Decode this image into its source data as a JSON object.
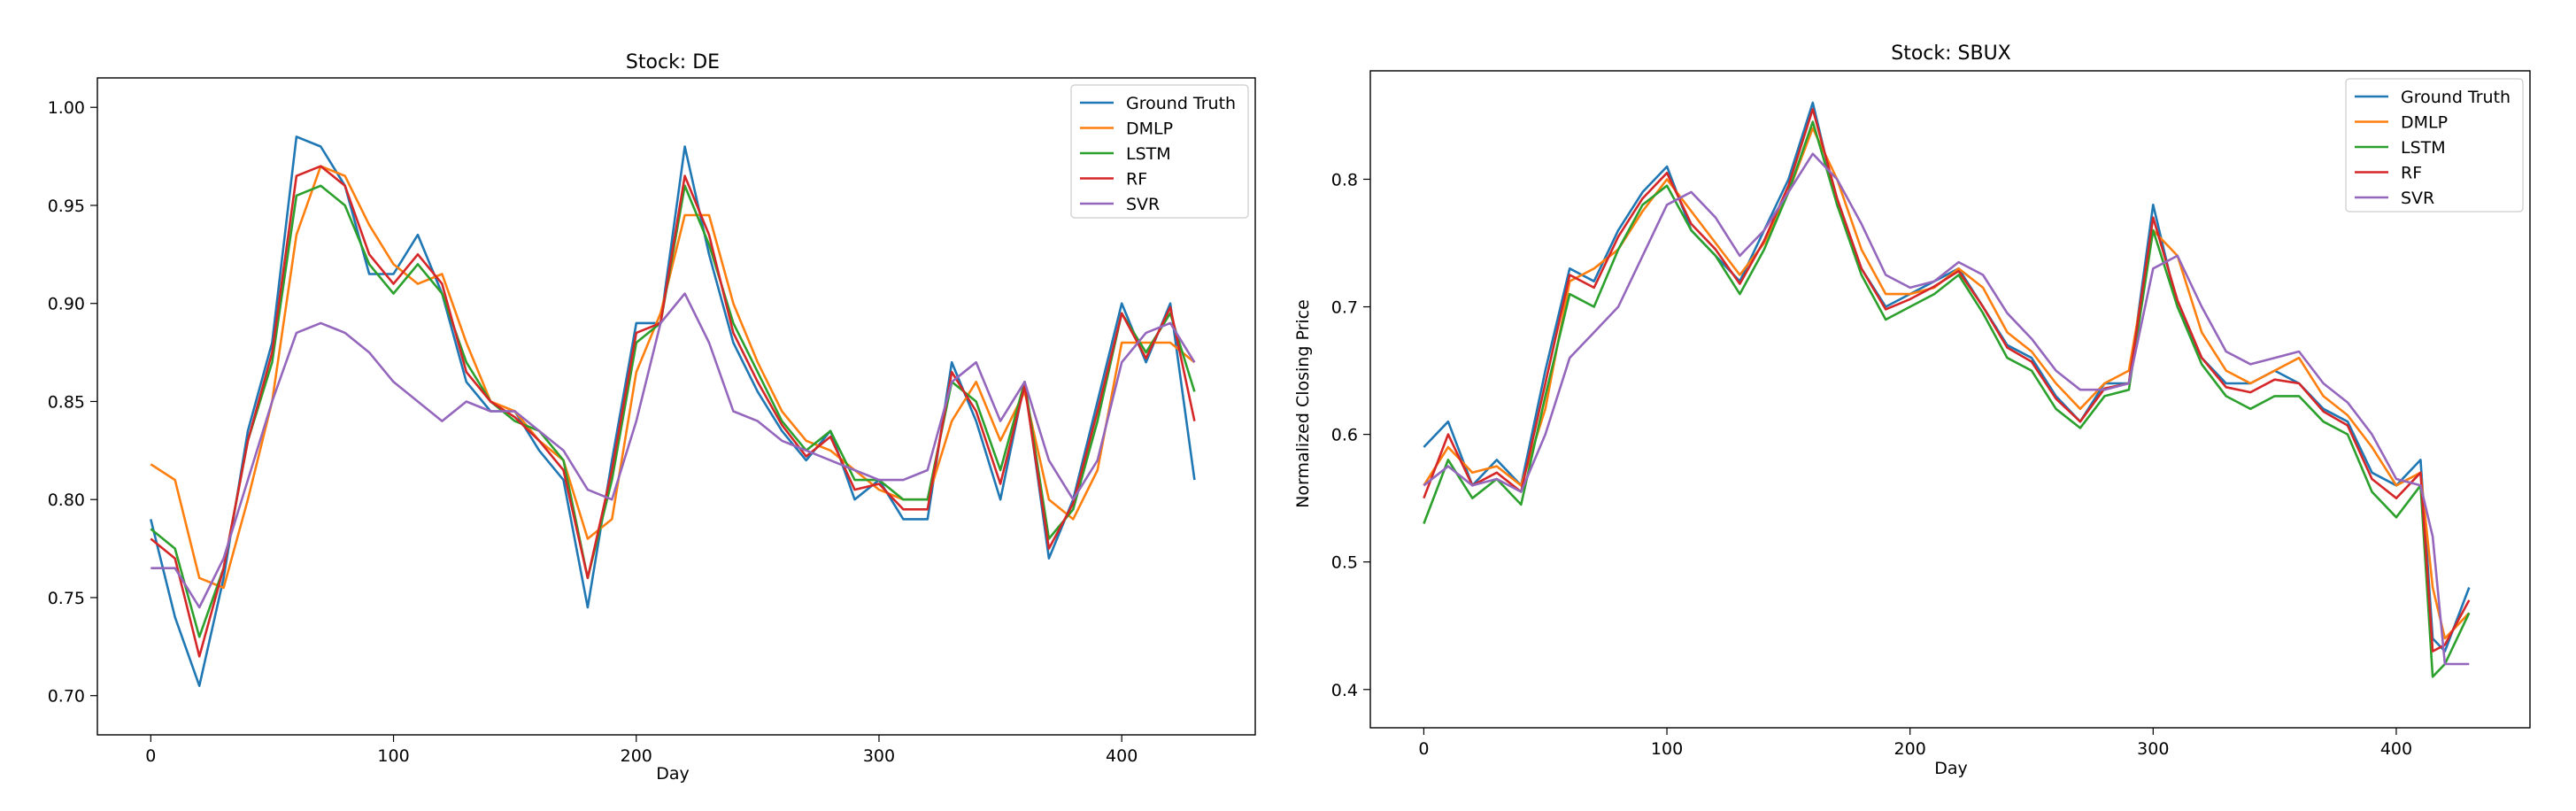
{
  "chart_data": [
    {
      "type": "line",
      "title": "Stock: DE",
      "xlabel": "Day",
      "ylabel": "",
      "xlim": [
        -22,
        455
      ],
      "ylim": [
        0.68,
        1.015
      ],
      "xticks": [
        0,
        100,
        200,
        300,
        400
      ],
      "yticks": [
        0.7,
        0.75,
        0.8,
        0.85,
        0.9,
        0.95,
        1.0
      ],
      "ytick_labels": [
        "0.70",
        "0.75",
        "0.80",
        "0.85",
        "0.90",
        "0.95",
        "1.00"
      ],
      "legend_position": "top-right",
      "x": [
        0,
        10,
        20,
        30,
        40,
        50,
        60,
        70,
        80,
        90,
        100,
        110,
        120,
        130,
        140,
        150,
        160,
        170,
        180,
        190,
        200,
        210,
        220,
        230,
        240,
        250,
        260,
        270,
        280,
        290,
        300,
        310,
        320,
        330,
        340,
        350,
        360,
        370,
        380,
        390,
        400,
        410,
        420,
        430
      ],
      "series": [
        {
          "name": "Ground Truth",
          "color": "#1f77b4",
          "values": [
            0.79,
            0.74,
            0.705,
            0.76,
            0.835,
            0.88,
            0.985,
            0.98,
            0.96,
            0.915,
            0.915,
            0.935,
            0.905,
            0.86,
            0.845,
            0.845,
            0.825,
            0.81,
            0.745,
            0.82,
            0.89,
            0.89,
            0.98,
            0.925,
            0.88,
            0.855,
            0.835,
            0.82,
            0.835,
            0.8,
            0.81,
            0.79,
            0.79,
            0.87,
            0.84,
            0.8,
            0.86,
            0.77,
            0.8,
            0.85,
            0.9,
            0.87,
            0.9,
            0.81
          ]
        },
        {
          "name": "DMLP",
          "color": "#ff7f0e",
          "values": [
            0.818,
            0.81,
            0.76,
            0.755,
            0.8,
            0.85,
            0.935,
            0.97,
            0.965,
            0.94,
            0.92,
            0.91,
            0.915,
            0.88,
            0.85,
            0.845,
            0.83,
            0.82,
            0.78,
            0.79,
            0.865,
            0.895,
            0.945,
            0.945,
            0.9,
            0.87,
            0.845,
            0.83,
            0.825,
            0.815,
            0.805,
            0.8,
            0.8,
            0.84,
            0.86,
            0.83,
            0.855,
            0.8,
            0.79,
            0.815,
            0.88,
            0.88,
            0.88,
            0.87
          ]
        },
        {
          "name": "LSTM",
          "color": "#2ca02c",
          "values": [
            0.785,
            0.775,
            0.73,
            0.765,
            0.83,
            0.87,
            0.955,
            0.96,
            0.95,
            0.92,
            0.905,
            0.92,
            0.905,
            0.87,
            0.85,
            0.84,
            0.835,
            0.82,
            0.76,
            0.81,
            0.88,
            0.89,
            0.96,
            0.93,
            0.89,
            0.865,
            0.84,
            0.825,
            0.835,
            0.81,
            0.81,
            0.8,
            0.8,
            0.86,
            0.85,
            0.815,
            0.86,
            0.78,
            0.795,
            0.84,
            0.895,
            0.875,
            0.895,
            0.855
          ]
        },
        {
          "name": "RF",
          "color": "#d62728",
          "values": [
            0.78,
            0.77,
            0.72,
            0.765,
            0.83,
            0.875,
            0.965,
            0.97,
            0.96,
            0.925,
            0.91,
            0.925,
            0.91,
            0.865,
            0.85,
            0.842,
            0.83,
            0.815,
            0.76,
            0.815,
            0.885,
            0.89,
            0.965,
            0.935,
            0.885,
            0.86,
            0.838,
            0.822,
            0.832,
            0.805,
            0.808,
            0.795,
            0.795,
            0.865,
            0.845,
            0.808,
            0.858,
            0.775,
            0.798,
            0.845,
            0.895,
            0.872,
            0.898,
            0.84
          ]
        },
        {
          "name": "SVR",
          "color": "#9467bd",
          "values": [
            0.765,
            0.765,
            0.745,
            0.77,
            0.81,
            0.85,
            0.885,
            0.89,
            0.885,
            0.875,
            0.86,
            0.85,
            0.84,
            0.85,
            0.845,
            0.845,
            0.835,
            0.825,
            0.805,
            0.8,
            0.84,
            0.89,
            0.905,
            0.88,
            0.845,
            0.84,
            0.83,
            0.825,
            0.82,
            0.815,
            0.81,
            0.81,
            0.815,
            0.86,
            0.87,
            0.84,
            0.86,
            0.82,
            0.8,
            0.82,
            0.87,
            0.885,
            0.89,
            0.87
          ]
        }
      ]
    },
    {
      "type": "line",
      "title": "Stock: SBUX",
      "xlabel": "Day",
      "ylabel": "Normalized Closing Price",
      "xlim": [
        -22,
        455
      ],
      "ylim": [
        0.37,
        0.885
      ],
      "xticks": [
        0,
        100,
        200,
        300,
        400
      ],
      "yticks": [
        0.4,
        0.5,
        0.6,
        0.7,
        0.8
      ],
      "ytick_labels": [
        "0.4",
        "0.5",
        "0.6",
        "0.7",
        "0.8"
      ],
      "legend_position": "top-right",
      "x": [
        0,
        10,
        20,
        30,
        40,
        50,
        60,
        70,
        80,
        90,
        100,
        110,
        120,
        130,
        140,
        150,
        160,
        170,
        180,
        190,
        200,
        210,
        220,
        230,
        240,
        250,
        260,
        270,
        280,
        290,
        300,
        310,
        320,
        330,
        340,
        350,
        360,
        370,
        380,
        390,
        400,
        410,
        415,
        420,
        430
      ],
      "series": [
        {
          "name": "Ground Truth",
          "color": "#1f77b4",
          "values": [
            0.59,
            0.61,
            0.56,
            0.58,
            0.56,
            0.65,
            0.73,
            0.72,
            0.76,
            0.79,
            0.81,
            0.76,
            0.74,
            0.72,
            0.76,
            0.8,
            0.86,
            0.78,
            0.73,
            0.7,
            0.71,
            0.72,
            0.73,
            0.7,
            0.67,
            0.66,
            0.63,
            0.61,
            0.64,
            0.64,
            0.78,
            0.7,
            0.66,
            0.64,
            0.64,
            0.65,
            0.64,
            0.62,
            0.61,
            0.57,
            0.56,
            0.58,
            0.44,
            0.43,
            0.48
          ]
        },
        {
          "name": "DMLP",
          "color": "#ff7f0e",
          "values": [
            0.56,
            0.59,
            0.57,
            0.575,
            0.56,
            0.62,
            0.72,
            0.73,
            0.745,
            0.775,
            0.8,
            0.775,
            0.75,
            0.725,
            0.75,
            0.79,
            0.84,
            0.8,
            0.745,
            0.71,
            0.71,
            0.715,
            0.73,
            0.715,
            0.68,
            0.665,
            0.64,
            0.62,
            0.64,
            0.65,
            0.76,
            0.74,
            0.68,
            0.65,
            0.64,
            0.65,
            0.66,
            0.63,
            0.615,
            0.59,
            0.56,
            0.57,
            0.48,
            0.44,
            0.46
          ]
        },
        {
          "name": "LSTM",
          "color": "#2ca02c",
          "values": [
            0.53,
            0.58,
            0.55,
            0.565,
            0.545,
            0.63,
            0.71,
            0.7,
            0.745,
            0.78,
            0.795,
            0.76,
            0.74,
            0.71,
            0.745,
            0.79,
            0.845,
            0.78,
            0.725,
            0.69,
            0.7,
            0.71,
            0.725,
            0.695,
            0.66,
            0.65,
            0.62,
            0.605,
            0.63,
            0.635,
            0.76,
            0.7,
            0.655,
            0.63,
            0.62,
            0.63,
            0.63,
            0.61,
            0.6,
            0.555,
            0.535,
            0.56,
            0.41,
            0.42,
            0.46
          ]
        },
        {
          "name": "RF",
          "color": "#d62728",
          "values": [
            0.55,
            0.6,
            0.56,
            0.57,
            0.555,
            0.64,
            0.725,
            0.715,
            0.755,
            0.785,
            0.805,
            0.765,
            0.745,
            0.718,
            0.752,
            0.795,
            0.855,
            0.785,
            0.73,
            0.698,
            0.706,
            0.716,
            0.728,
            0.7,
            0.668,
            0.657,
            0.628,
            0.61,
            0.636,
            0.64,
            0.77,
            0.705,
            0.66,
            0.637,
            0.633,
            0.643,
            0.64,
            0.618,
            0.607,
            0.565,
            0.55,
            0.57,
            0.43,
            0.435,
            0.47
          ]
        },
        {
          "name": "SVR",
          "color": "#9467bd",
          "values": [
            0.56,
            0.575,
            0.56,
            0.565,
            0.555,
            0.6,
            0.66,
            0.68,
            0.7,
            0.74,
            0.78,
            0.79,
            0.77,
            0.74,
            0.76,
            0.79,
            0.82,
            0.8,
            0.765,
            0.725,
            0.715,
            0.72,
            0.735,
            0.725,
            0.695,
            0.675,
            0.65,
            0.635,
            0.635,
            0.64,
            0.73,
            0.74,
            0.7,
            0.665,
            0.655,
            0.66,
            0.665,
            0.64,
            0.625,
            0.6,
            0.565,
            0.56,
            0.52,
            0.42,
            0.42
          ]
        }
      ]
    }
  ]
}
